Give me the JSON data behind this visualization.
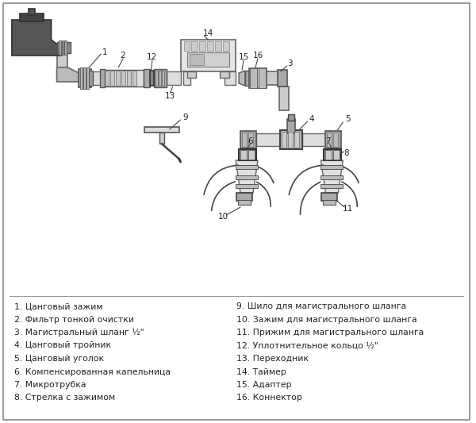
{
  "legend_left": [
    "1. Цанговый зажим",
    "2. Фильтр тонкой очистки",
    "3. Магистральный шланг ½\"",
    "4. Цанговый тройник",
    "5. Цанговый уголок",
    "6. Компенсированная капельница",
    "7. Микротрубка",
    "8. Стрелка с зажимом"
  ],
  "legend_right": [
    "9. Шило для магистрального шланга",
    "10. Зажим для магистрального шланга",
    "11. Прижим для магистрального шланга",
    "12. Уплотнительное кольцо ½\"",
    "13. Переходник",
    "14. Таймер",
    "15. Адаптер",
    "16. Коннектор"
  ]
}
